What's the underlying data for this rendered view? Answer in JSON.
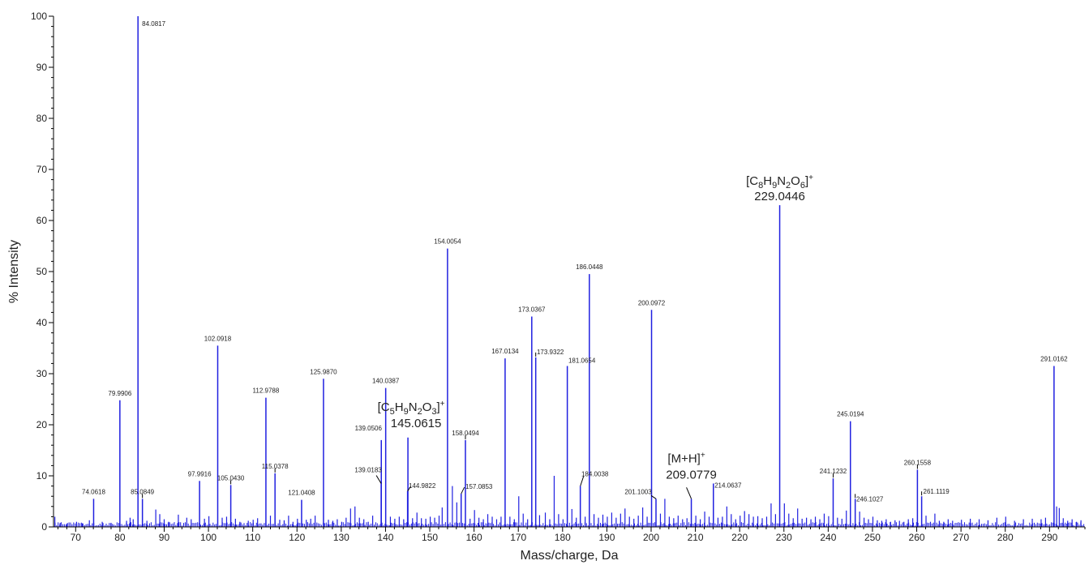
{
  "chart_data": {
    "type": "bar",
    "title": "",
    "xlabel": "Mass/charge, Da",
    "ylabel": "% Intensity",
    "xlim": [
      65,
      298
    ],
    "ylim": [
      0,
      100
    ],
    "x_ticks": [
      70,
      80,
      90,
      100,
      110,
      120,
      130,
      140,
      150,
      160,
      170,
      180,
      190,
      200,
      210,
      220,
      230,
      240,
      250,
      260,
      270,
      280,
      290
    ],
    "y_ticks": [
      0,
      10,
      20,
      30,
      40,
      50,
      60,
      70,
      80,
      90,
      100
    ],
    "grid": false,
    "legend": "none",
    "series_color": "#2020e0",
    "labeled_peaks": [
      {
        "mz": 74.0618,
        "intensity": 5.5,
        "label": "74.0618"
      },
      {
        "mz": 79.9906,
        "intensity": 24.8,
        "label": "79.9906"
      },
      {
        "mz": 84.0817,
        "intensity": 100,
        "label": "84.0817"
      },
      {
        "mz": 85.0849,
        "intensity": 5.5,
        "label": "85.0849"
      },
      {
        "mz": 97.9916,
        "intensity": 9,
        "label": "97.9916"
      },
      {
        "mz": 102.0918,
        "intensity": 35.5,
        "label": "102.0918"
      },
      {
        "mz": 105.043,
        "intensity": 8.2,
        "label": "105.0430"
      },
      {
        "mz": 112.9788,
        "intensity": 25.3,
        "label": "112.9788"
      },
      {
        "mz": 115.0378,
        "intensity": 10.5,
        "label": "115.0378"
      },
      {
        "mz": 121.0408,
        "intensity": 5.3,
        "label": "121.0408"
      },
      {
        "mz": 125.987,
        "intensity": 29,
        "label": "125.9870"
      },
      {
        "mz": 139.0183,
        "intensity": 8.5,
        "label": "139.0183"
      },
      {
        "mz": 139.0506,
        "intensity": 17,
        "label": "139.0506"
      },
      {
        "mz": 140.0387,
        "intensity": 27.2,
        "label": "140.0387"
      },
      {
        "mz": 144.9822,
        "intensity": 7,
        "label": "144.9822"
      },
      {
        "mz": 145.0615,
        "intensity": 17.5,
        "label": "145.0615"
      },
      {
        "mz": 154.0054,
        "intensity": 54.5,
        "label": "154.0054"
      },
      {
        "mz": 157.0853,
        "intensity": 6.5,
        "label": "157.0853"
      },
      {
        "mz": 158.0494,
        "intensity": 17,
        "label": "158.0494"
      },
      {
        "mz": 167.0134,
        "intensity": 33,
        "label": "167.0134"
      },
      {
        "mz": 173.0367,
        "intensity": 41.2,
        "label": "173.0367"
      },
      {
        "mz": 173.9322,
        "intensity": 33.2,
        "label": "173.9322"
      },
      {
        "mz": 181.0654,
        "intensity": 31.5,
        "label": "181.0654"
      },
      {
        "mz": 184.0038,
        "intensity": 8,
        "label": "184.0038"
      },
      {
        "mz": 186.0448,
        "intensity": 49.5,
        "label": "186.0448"
      },
      {
        "mz": 200.0972,
        "intensity": 42.5,
        "label": "200.0972"
      },
      {
        "mz": 201.1003,
        "intensity": 5.5,
        "label": "201.1003"
      },
      {
        "mz": 209.0779,
        "intensity": 5.5,
        "label": "209.0779"
      },
      {
        "mz": 214.0637,
        "intensity": 8.5,
        "label": "214.0637"
      },
      {
        "mz": 229.0446,
        "intensity": 63,
        "label": "229.0446"
      },
      {
        "mz": 241.1232,
        "intensity": 9.5,
        "label": "241.1232"
      },
      {
        "mz": 245.0194,
        "intensity": 20.7,
        "label": "245.0194"
      },
      {
        "mz": 246.1027,
        "intensity": 5.5,
        "label": "246.1027"
      },
      {
        "mz": 260.1558,
        "intensity": 11.2,
        "label": "260.1558"
      },
      {
        "mz": 261.1119,
        "intensity": 6,
        "label": "261.1119"
      },
      {
        "mz": 291.0162,
        "intensity": 31.5,
        "label": "291.0162"
      }
    ],
    "minor_peaks": [
      [
        65.3,
        2.0
      ],
      [
        66.5,
        0.8
      ],
      [
        68,
        0.6
      ],
      [
        70.2,
        1.0
      ],
      [
        71.5,
        0.7
      ],
      [
        73.1,
        1.3
      ],
      [
        76,
        1.0
      ],
      [
        78,
        0.8
      ],
      [
        81.5,
        1.2
      ],
      [
        82.3,
        1.8
      ],
      [
        83,
        1.5
      ],
      [
        86.1,
        1.2
      ],
      [
        88.1,
        3.4
      ],
      [
        89,
        2.5
      ],
      [
        90,
        1.5
      ],
      [
        91,
        1.0
      ],
      [
        93.2,
        2.4
      ],
      [
        95.1,
        1.8
      ],
      [
        96.1,
        1.5
      ],
      [
        99.1,
        1.6
      ],
      [
        100.1,
        2.1
      ],
      [
        103.1,
        1.8
      ],
      [
        104.1,
        2.0
      ],
      [
        106.1,
        1.6
      ],
      [
        107.1,
        1.0
      ],
      [
        109,
        1.2
      ],
      [
        110.1,
        1.4
      ],
      [
        111.1,
        1.7
      ],
      [
        114,
        2.2
      ],
      [
        116.1,
        1.4
      ],
      [
        117.1,
        1.3
      ],
      [
        118.1,
        2.2
      ],
      [
        119.1,
        1.0
      ],
      [
        120.1,
        1.6
      ],
      [
        122.1,
        1.4
      ],
      [
        123.1,
        1.6
      ],
      [
        124.1,
        2.2
      ],
      [
        127.1,
        1.4
      ],
      [
        128.1,
        1.2
      ],
      [
        129.1,
        1.5
      ],
      [
        130.1,
        1.0
      ],
      [
        131.1,
        1.8
      ],
      [
        132.1,
        3.6
      ],
      [
        133.1,
        4.0
      ],
      [
        134.1,
        1.8
      ],
      [
        135.1,
        1.5
      ],
      [
        136.1,
        1.0
      ],
      [
        137.1,
        2.2
      ],
      [
        141.1,
        2.0
      ],
      [
        142.1,
        1.6
      ],
      [
        143.1,
        2.0
      ],
      [
        144.1,
        1.5
      ],
      [
        146.1,
        1.7
      ],
      [
        147.1,
        2.8
      ],
      [
        148.1,
        1.7
      ],
      [
        149.1,
        1.6
      ],
      [
        150.1,
        2.0
      ],
      [
        151.1,
        1.8
      ],
      [
        152.1,
        2.2
      ],
      [
        152.8,
        3.8
      ],
      [
        155.1,
        8.0
      ],
      [
        156.1,
        4.8
      ],
      [
        159.1,
        1.6
      ],
      [
        160.1,
        3.3
      ],
      [
        161.1,
        1.8
      ],
      [
        162.1,
        1.5
      ],
      [
        163.1,
        2.5
      ],
      [
        164.1,
        2.0
      ],
      [
        165.1,
        1.5
      ],
      [
        166.1,
        2.0
      ],
      [
        168.1,
        2.0
      ],
      [
        169.1,
        1.5
      ],
      [
        170.1,
        6.0
      ],
      [
        171.1,
        2.6
      ],
      [
        172.1,
        1.5
      ],
      [
        174.8,
        2.3
      ],
      [
        176.1,
        2.8
      ],
      [
        177.1,
        1.5
      ],
      [
        178.1,
        10.0
      ],
      [
        179.1,
        2.5
      ],
      [
        180.1,
        1.5
      ],
      [
        182.1,
        3.5
      ],
      [
        183.1,
        1.8
      ],
      [
        185.1,
        2.0
      ],
      [
        187.1,
        2.5
      ],
      [
        188.1,
        1.8
      ],
      [
        189.1,
        2.4
      ],
      [
        190.1,
        2.0
      ],
      [
        191.1,
        2.8
      ],
      [
        192.1,
        1.8
      ],
      [
        193.1,
        2.6
      ],
      [
        194.1,
        3.6
      ],
      [
        195.1,
        2.0
      ],
      [
        196.1,
        1.6
      ],
      [
        197.1,
        2.2
      ],
      [
        198.1,
        3.8
      ],
      [
        199.1,
        2.0
      ],
      [
        202.1,
        2.6
      ],
      [
        203.1,
        5.5
      ],
      [
        204.1,
        2.0
      ],
      [
        205.1,
        1.7
      ],
      [
        206.1,
        2.2
      ],
      [
        207.1,
        1.5
      ],
      [
        208.1,
        1.7
      ],
      [
        210.1,
        2.2
      ],
      [
        211.1,
        1.5
      ],
      [
        212.1,
        3.0
      ],
      [
        213.1,
        2.0
      ],
      [
        215.1,
        1.8
      ],
      [
        216.1,
        2.0
      ],
      [
        217.1,
        4.0
      ],
      [
        218.1,
        2.5
      ],
      [
        219.1,
        1.5
      ],
      [
        220.1,
        2.2
      ],
      [
        221.1,
        3.1
      ],
      [
        222.1,
        2.5
      ],
      [
        223.1,
        2.0
      ],
      [
        224.1,
        2.1
      ],
      [
        225.1,
        1.7
      ],
      [
        226.1,
        2.0
      ],
      [
        227.1,
        4.6
      ],
      [
        228.1,
        2.5
      ],
      [
        230.1,
        4.6
      ],
      [
        231.1,
        2.6
      ],
      [
        232.1,
        1.7
      ],
      [
        233.1,
        3.6
      ],
      [
        234.1,
        1.6
      ],
      [
        235.1,
        1.8
      ],
      [
        236.1,
        1.5
      ],
      [
        237.1,
        2.0
      ],
      [
        238.1,
        1.5
      ],
      [
        239.1,
        2.6
      ],
      [
        240.1,
        2.1
      ],
      [
        242.1,
        1.8
      ],
      [
        243.1,
        1.6
      ],
      [
        244.1,
        3.2
      ],
      [
        247.1,
        3.0
      ],
      [
        248.1,
        1.8
      ],
      [
        249.1,
        1.5
      ],
      [
        250.1,
        2.0
      ],
      [
        251.1,
        1.3
      ],
      [
        252.1,
        1.2
      ],
      [
        253.1,
        1.5
      ],
      [
        254.1,
        1.0
      ],
      [
        255.1,
        1.3
      ],
      [
        256.1,
        1.2
      ],
      [
        257.1,
        1.0
      ],
      [
        258.1,
        1.5
      ],
      [
        259.1,
        1.7
      ],
      [
        262.1,
        2.2
      ],
      [
        263.1,
        1.0
      ],
      [
        264.1,
        2.6
      ],
      [
        265.1,
        1.2
      ],
      [
        266.1,
        1.0
      ],
      [
        267.1,
        1.5
      ],
      [
        268.1,
        1.2
      ],
      [
        270.1,
        1.4
      ],
      [
        272.1,
        1.6
      ],
      [
        274.1,
        1.5
      ],
      [
        276.1,
        1.3
      ],
      [
        278.1,
        1.8
      ],
      [
        280.1,
        2.0
      ],
      [
        282.1,
        1.2
      ],
      [
        284.1,
        1.5
      ],
      [
        286.1,
        1.6
      ],
      [
        288.1,
        1.5
      ],
      [
        289.1,
        1.8
      ],
      [
        291.6,
        4.0
      ],
      [
        292.2,
        3.7
      ],
      [
        293.1,
        1.7
      ],
      [
        294.1,
        1.2
      ],
      [
        295.1,
        1.5
      ],
      [
        296.1,
        1.0
      ],
      [
        297.1,
        1.3
      ]
    ],
    "annotations": [
      {
        "formula_base": "[C",
        "formula_sub": [
          "8",
          "9",
          "6"
        ],
        "formula_elements": [
          "H",
          "N",
          "O"
        ],
        "formula_sub_mid": "2",
        "charge": "+",
        "mz_label": "229.0446",
        "color": "#222222"
      },
      {
        "formula_base": "[C",
        "formula_sub": [
          "5",
          "9",
          "3"
        ],
        "formula_elements": [
          "H",
          "N",
          "O"
        ],
        "formula_sub_mid": "2",
        "charge": "+",
        "mz_label": "145.0615",
        "color": "#222222"
      },
      {
        "text": "[M+H]",
        "charge": "+",
        "mz_label": "209.0779",
        "color": "#ee1111"
      }
    ]
  }
}
